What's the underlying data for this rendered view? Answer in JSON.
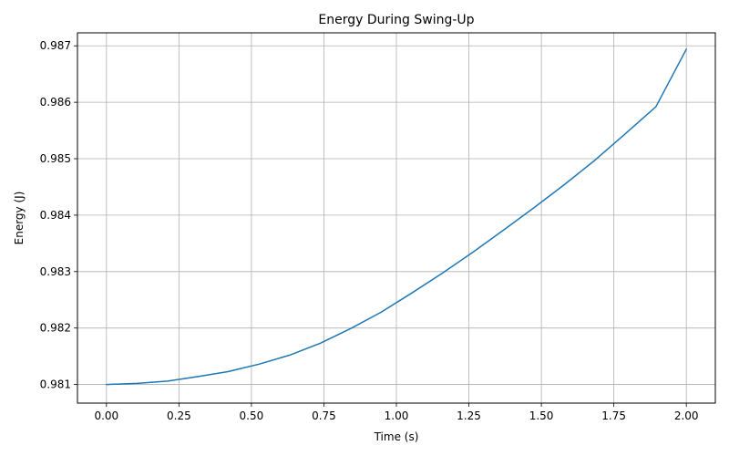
{
  "chart_data": {
    "type": "line",
    "title": "Energy During Swing-Up",
    "xlabel": "Time (s)",
    "ylabel": "Energy (J)",
    "xlim": [
      -0.1,
      2.1
    ],
    "ylim": [
      0.98067,
      0.98723
    ],
    "xticks": [
      0.0,
      0.25,
      0.5,
      0.75,
      1.0,
      1.25,
      1.5,
      1.75,
      2.0
    ],
    "xtick_labels": [
      "0.00",
      "0.25",
      "0.50",
      "0.75",
      "1.00",
      "1.25",
      "1.50",
      "1.75",
      "2.00"
    ],
    "yticks": [
      0.981,
      0.982,
      0.983,
      0.984,
      0.985,
      0.986,
      0.987
    ],
    "ytick_labels": [
      "0.981",
      "0.982",
      "0.983",
      "0.984",
      "0.985",
      "0.986",
      "0.987"
    ],
    "grid": true,
    "series": [
      {
        "color": "#1f77b4",
        "x": [
          0.0,
          0.105,
          0.211,
          0.316,
          0.421,
          0.526,
          0.632,
          0.737,
          0.842,
          0.947,
          1.053,
          1.158,
          1.263,
          1.368,
          1.474,
          1.579,
          1.684,
          1.789,
          1.895,
          2.0
        ],
        "y": [
          0.981,
          0.98102,
          0.98106,
          0.98114,
          0.98123,
          0.98136,
          0.98152,
          0.98173,
          0.98199,
          0.98228,
          0.98262,
          0.98297,
          0.98334,
          0.98373,
          0.98413,
          0.98454,
          0.98497,
          0.98544,
          0.98592,
          0.98694
        ]
      }
    ]
  },
  "colors": {
    "grid": "#b0b0b0",
    "axes": "#000000",
    "line": "#1f77b4"
  }
}
